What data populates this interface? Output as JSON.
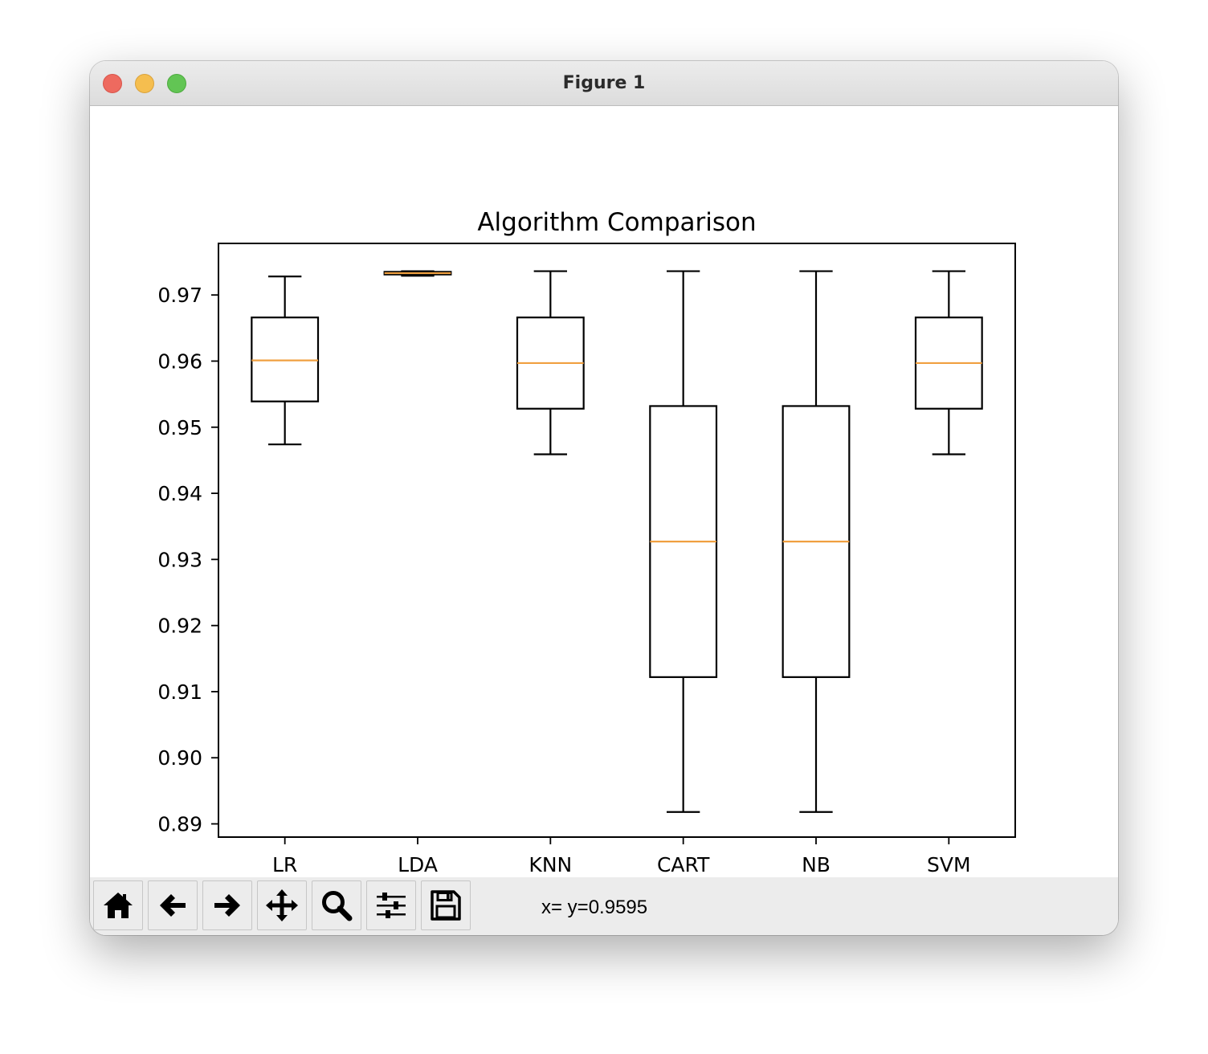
{
  "window": {
    "title": "Figure 1",
    "traffic_lights": [
      {
        "name": "close",
        "color": "#ee6a5f"
      },
      {
        "name": "minimize",
        "color": "#f5be4f"
      },
      {
        "name": "zoom",
        "color": "#62c554"
      }
    ]
  },
  "chart_data": {
    "type": "boxplot",
    "title": "Algorithm Comparison",
    "xlabel": "",
    "ylabel": "",
    "ylim": [
      0.888,
      0.9778
    ],
    "yticks": [
      "0.89",
      "0.90",
      "0.91",
      "0.92",
      "0.93",
      "0.94",
      "0.95",
      "0.96",
      "0.97"
    ],
    "ytick_values": [
      0.89,
      0.9,
      0.91,
      0.92,
      0.93,
      0.94,
      0.95,
      0.96,
      0.97
    ],
    "grid": false,
    "box_color": "#000000",
    "median_color": "#f0a040",
    "categories": [
      "LR",
      "LDA",
      "KNN",
      "CART",
      "NB",
      "SVM"
    ],
    "boxes": [
      {
        "label": "LR",
        "whisker_low": 0.9474,
        "q1": 0.9539,
        "median": 0.9601,
        "q3": 0.9666,
        "whisker_high": 0.9728
      },
      {
        "label": "LDA",
        "whisker_low": 0.9729,
        "q1": 0.9731,
        "median": 0.9733,
        "q3": 0.9735,
        "whisker_high": 0.9736
      },
      {
        "label": "KNN",
        "whisker_low": 0.9459,
        "q1": 0.9528,
        "median": 0.9597,
        "q3": 0.9666,
        "whisker_high": 0.9736
      },
      {
        "label": "CART",
        "whisker_low": 0.8918,
        "q1": 0.9122,
        "median": 0.9327,
        "q3": 0.9532,
        "whisker_high": 0.9736
      },
      {
        "label": "NB",
        "whisker_low": 0.8918,
        "q1": 0.9122,
        "median": 0.9327,
        "q3": 0.9532,
        "whisker_high": 0.9736
      },
      {
        "label": "SVM",
        "whisker_low": 0.9459,
        "q1": 0.9528,
        "median": 0.9597,
        "q3": 0.9666,
        "whisker_high": 0.9736
      }
    ]
  },
  "toolbar": {
    "buttons": [
      {
        "name": "home-button",
        "icon": "home-icon"
      },
      {
        "name": "back-button",
        "icon": "arrow-left-icon"
      },
      {
        "name": "forward-button",
        "icon": "arrow-right-icon"
      },
      {
        "name": "pan-button",
        "icon": "move-icon"
      },
      {
        "name": "zoom-button",
        "icon": "magnifier-icon"
      },
      {
        "name": "configure-subplots-button",
        "icon": "sliders-icon"
      },
      {
        "name": "save-button",
        "icon": "floppy-disk-icon"
      }
    ],
    "coordinates": "x= y=0.9595"
  }
}
